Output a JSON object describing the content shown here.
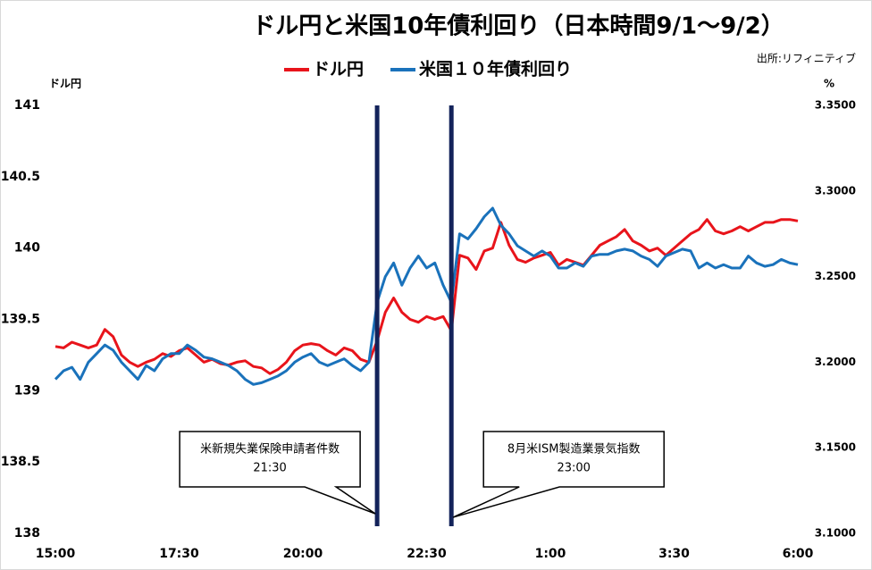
{
  "chart_data": {
    "type": "line",
    "title": "ドル円と米国10年債利回り（日本時間9/1～9/2）",
    "source": "出所:リフィニティブ",
    "y_label": "ドル円",
    "y2_label": "%",
    "categories": [
      "15:00",
      null,
      null,
      null,
      null,
      null,
      null,
      null,
      null,
      null,
      null,
      null,
      null,
      null,
      null,
      "17:30",
      null,
      null,
      null,
      null,
      null,
      null,
      null,
      null,
      null,
      null,
      null,
      null,
      null,
      null,
      "20:00",
      null,
      null,
      null,
      null,
      null,
      null,
      null,
      null,
      null,
      null,
      null,
      null,
      null,
      null,
      "22:30",
      null,
      null,
      null,
      null,
      null,
      null,
      null,
      null,
      null,
      null,
      null,
      null,
      null,
      null,
      "1:00",
      null,
      null,
      null,
      null,
      null,
      null,
      null,
      null,
      null,
      null,
      null,
      null,
      null,
      null,
      "3:30",
      null,
      null,
      null,
      null,
      null,
      null,
      null,
      null,
      null,
      null,
      null,
      null,
      null,
      null,
      "6:00"
    ],
    "series": [
      {
        "name": "ドル円",
        "color": "#e8141b",
        "values": [
          139.31,
          139.3,
          139.34,
          139.32,
          139.3,
          139.32,
          139.43,
          139.38,
          139.25,
          139.2,
          139.17,
          139.2,
          139.22,
          139.26,
          139.24,
          139.28,
          139.3,
          139.25,
          139.2,
          139.22,
          139.19,
          139.18,
          139.2,
          139.21,
          139.17,
          139.16,
          139.12,
          139.15,
          139.2,
          139.28,
          139.32,
          139.33,
          139.32,
          139.28,
          139.25,
          139.3,
          139.28,
          139.22,
          139.2,
          139.35,
          139.55,
          139.65,
          139.55,
          139.5,
          139.48,
          139.52,
          139.5,
          139.52,
          139.42,
          139.95,
          139.93,
          139.85,
          139.98,
          140.0,
          140.18,
          140.02,
          139.92,
          139.9,
          139.93,
          139.95,
          139.97,
          139.88,
          139.92,
          139.9,
          139.88,
          139.95,
          140.02,
          140.05,
          140.08,
          140.13,
          140.05,
          140.02,
          139.98,
          140.0,
          139.95,
          140.0,
          140.05,
          140.1,
          140.13,
          140.2,
          140.12,
          140.1,
          140.12,
          140.15,
          140.12,
          140.15,
          140.18,
          140.18,
          140.2,
          140.2,
          140.19
        ]
      },
      {
        "name": "米国１０年債利回り",
        "color": "#1a72bb",
        "axis": "y2",
        "values": [
          3.19,
          3.195,
          3.197,
          3.19,
          3.2,
          3.205,
          3.21,
          3.207,
          3.2,
          3.195,
          3.19,
          3.198,
          3.195,
          3.202,
          3.205,
          3.205,
          3.21,
          3.207,
          3.203,
          3.202,
          3.2,
          3.198,
          3.195,
          3.19,
          3.187,
          3.188,
          3.19,
          3.192,
          3.195,
          3.2,
          3.203,
          3.205,
          3.2,
          3.198,
          3.2,
          3.202,
          3.198,
          3.195,
          3.2,
          3.235,
          3.25,
          3.258,
          3.245,
          3.255,
          3.262,
          3.255,
          3.258,
          3.245,
          3.235,
          3.275,
          3.272,
          3.278,
          3.285,
          3.29,
          3.28,
          3.275,
          3.268,
          3.265,
          3.262,
          3.265,
          3.262,
          3.255,
          3.255,
          3.258,
          3.256,
          3.262,
          3.263,
          3.263,
          3.265,
          3.266,
          3.265,
          3.262,
          3.26,
          3.256,
          3.262,
          3.264,
          3.266,
          3.265,
          3.255,
          3.258,
          3.255,
          3.257,
          3.255,
          3.255,
          3.262,
          3.258,
          3.256,
          3.257,
          3.26,
          3.258,
          3.257
        ]
      }
    ],
    "ylim": [
      138,
      141
    ],
    "yticks": [
      138,
      138.5,
      139,
      139.5,
      140,
      140.5,
      141
    ],
    "y2lim": [
      3.1,
      3.35
    ],
    "y2ticks": [
      {
        "value": 3.1,
        "label": "3.1000"
      },
      {
        "value": 3.15,
        "label": "3.1500"
      },
      {
        "value": 3.2,
        "label": "3.2000"
      },
      {
        "value": 3.25,
        "label": "3.2500"
      },
      {
        "value": 3.3,
        "label": "3.3000"
      },
      {
        "value": 3.35,
        "label": "3.3500"
      }
    ],
    "annotations": [
      {
        "text": "米新規失業保険申請者件数",
        "time": "21:30"
      },
      {
        "text": "8月米ISM製造業景気指数",
        "time": "23:00"
      }
    ]
  }
}
